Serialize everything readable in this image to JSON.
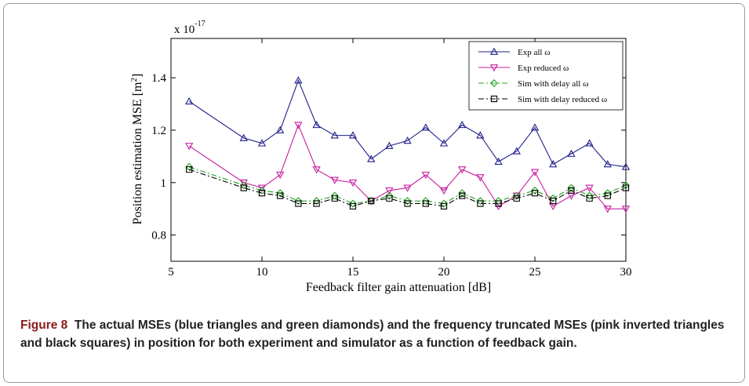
{
  "caption": {
    "figure_label": "Figure 8",
    "text": "The actual MSEs (blue triangles and green diamonds) and the frequency truncated MSEs (pink inverted triangles and black squares) in position for both experiment and simulator as a function of feedback gain."
  },
  "colors": {
    "exp_all": "#1f1f8a",
    "exp_reduced": "#c81ea0",
    "sim_all": "#22a022",
    "sim_reduced": "#000000"
  },
  "chart_data": {
    "type": "line",
    "title": "",
    "xlabel": "Feedback filter gain attenuation [dB]",
    "ylabel": "Position estimation MSE [m",
    "ylabel_sup": "2",
    "ylabel_end": "]",
    "scale_label": "x 10",
    "scale_exponent": "-17",
    "xlim": [
      5,
      30
    ],
    "ylim": [
      0.7,
      1.55
    ],
    "xticks": [
      5,
      10,
      15,
      20,
      25,
      30
    ],
    "yticks": [
      0.8,
      1.0,
      1.2,
      1.4
    ],
    "ytick_labels": [
      "0.8",
      "1",
      "1.2",
      "1.4"
    ],
    "grid": false,
    "legend_position": "top-right",
    "x": [
      6,
      9,
      10,
      11,
      12,
      13,
      14,
      15,
      16,
      17,
      18,
      19,
      20,
      21,
      22,
      23,
      24,
      25,
      26,
      27,
      28,
      29,
      30
    ],
    "series": [
      {
        "name": "Exp all ω",
        "marker": "triangle-up",
        "line": "solid",
        "color": "#1f1f8a",
        "values": [
          1.31,
          1.17,
          1.15,
          1.2,
          1.39,
          1.22,
          1.18,
          1.18,
          1.09,
          1.14,
          1.16,
          1.21,
          1.15,
          1.22,
          1.18,
          1.08,
          1.12,
          1.21,
          1.07,
          1.11,
          1.15,
          1.07,
          1.06
        ]
      },
      {
        "name": "Exp reduced ω",
        "marker": "triangle-down",
        "line": "solid",
        "color": "#c81ea0",
        "values": [
          1.14,
          1.0,
          0.98,
          1.03,
          1.22,
          1.05,
          1.01,
          1.0,
          0.93,
          0.97,
          0.98,
          1.03,
          0.97,
          1.05,
          1.02,
          0.91,
          0.95,
          1.04,
          0.91,
          0.95,
          0.98,
          0.9,
          0.9
        ]
      },
      {
        "name": "Sim with delay all ω",
        "marker": "diamond",
        "line": "dash-dot",
        "color": "#22a022",
        "values": [
          1.06,
          0.99,
          0.97,
          0.96,
          0.93,
          0.93,
          0.95,
          0.92,
          0.93,
          0.95,
          0.93,
          0.93,
          0.92,
          0.96,
          0.93,
          0.93,
          0.95,
          0.97,
          0.94,
          0.98,
          0.95,
          0.96,
          0.99
        ]
      },
      {
        "name": "Sim with delay reduced ω",
        "marker": "square",
        "line": "dash-dot",
        "color": "#000000",
        "values": [
          1.05,
          0.98,
          0.96,
          0.95,
          0.92,
          0.92,
          0.94,
          0.91,
          0.93,
          0.94,
          0.92,
          0.92,
          0.91,
          0.95,
          0.92,
          0.92,
          0.94,
          0.96,
          0.93,
          0.97,
          0.94,
          0.95,
          0.98
        ]
      }
    ]
  }
}
